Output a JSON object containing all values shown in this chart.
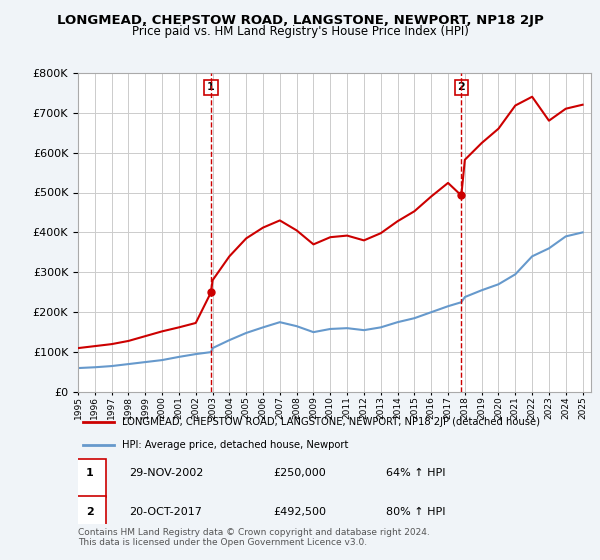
{
  "title": "LONGMEAD, CHEPSTOW ROAD, LANGSTONE, NEWPORT, NP18 2JP",
  "subtitle": "Price paid vs. HM Land Registry's House Price Index (HPI)",
  "legend_line1": "LONGMEAD, CHEPSTOW ROAD, LANGSTONE, NEWPORT, NP18 2JP (detached house)",
  "legend_line2": "HPI: Average price, detached house, Newport",
  "sale1_label": "1",
  "sale1_date": "29-NOV-2002",
  "sale1_price": "£250,000",
  "sale1_hpi": "64% ↑ HPI",
  "sale2_label": "2",
  "sale2_date": "20-OCT-2017",
  "sale2_price": "£492,500",
  "sale2_hpi": "80% ↑ HPI",
  "footer": "Contains HM Land Registry data © Crown copyright and database right 2024.\nThis data is licensed under the Open Government Licence v3.0.",
  "red_color": "#cc0000",
  "blue_color": "#6699cc",
  "background_color": "#f0f4f8",
  "plot_bg_color": "#ffffff",
  "grid_color": "#cccccc",
  "ylim": [
    0,
    800000
  ],
  "xlim_start": 1995.0,
  "xlim_end": 2025.5,
  "sale1_year": 2002.91,
  "sale2_year": 2017.79,
  "sale1_price_val": 250000,
  "sale2_price_val": 492500,
  "hpi_years": [
    1995.0,
    1996.0,
    1997.0,
    1998.0,
    1999.0,
    2000.0,
    2001.0,
    2002.0,
    2002.91,
    2003.0,
    2004.0,
    2005.0,
    2006.0,
    2007.0,
    2008.0,
    2009.0,
    2010.0,
    2011.0,
    2012.0,
    2013.0,
    2014.0,
    2015.0,
    2016.0,
    2017.0,
    2017.79,
    2018.0,
    2019.0,
    2020.0,
    2021.0,
    2022.0,
    2023.0,
    2024.0,
    2025.0
  ],
  "hpi_vals": [
    60000,
    62000,
    65000,
    70000,
    75000,
    80000,
    88000,
    95000,
    100000,
    110000,
    130000,
    148000,
    162000,
    175000,
    165000,
    150000,
    158000,
    160000,
    155000,
    162000,
    175000,
    185000,
    200000,
    215000,
    225000,
    238000,
    255000,
    270000,
    295000,
    340000,
    360000,
    390000,
    400000
  ],
  "red_years": [
    1995.0,
    1996.0,
    1997.0,
    1998.0,
    1999.0,
    2000.0,
    2001.0,
    2002.0,
    2002.91,
    2003.0,
    2004.0,
    2005.0,
    2006.0,
    2007.0,
    2008.0,
    2009.0,
    2010.0,
    2011.0,
    2012.0,
    2013.0,
    2014.0,
    2015.0,
    2016.0,
    2017.0,
    2017.79,
    2018.0,
    2019.0,
    2020.0,
    2021.0,
    2022.0,
    2023.0,
    2024.0,
    2025.0
  ],
  "red_vals": [
    110000,
    115000,
    120000,
    128000,
    140000,
    152000,
    162000,
    173000,
    250000,
    280000,
    340000,
    385000,
    412000,
    430000,
    405000,
    370000,
    388000,
    392000,
    380000,
    398000,
    428000,
    453000,
    490000,
    524000,
    492500,
    582000,
    624000,
    660000,
    718000,
    740000,
    680000,
    710000,
    720000
  ]
}
